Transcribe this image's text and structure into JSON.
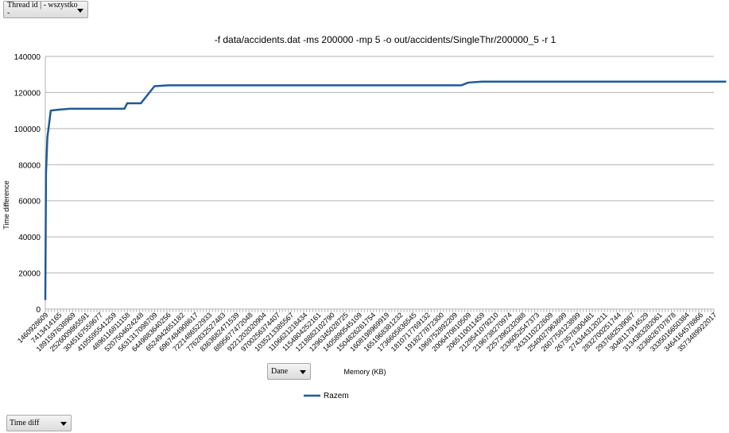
{
  "filters": {
    "thread": {
      "label": "Thread id | - wszystko\n-"
    },
    "data_field": {
      "label": "Dane"
    },
    "series_field": {
      "label": "Time diff"
    }
  },
  "chart_data": {
    "type": "line",
    "title": "-f data/accidents.dat -ms 200000 -mp 5 -o out/accidents/SingleThr/200000_5 -r 1",
    "xlabel": "Memory (KB)",
    "ylabel": "Time difference",
    "ylim": [
      0,
      140000
    ],
    "yticks": [
      0,
      20000,
      40000,
      60000,
      80000,
      100000,
      120000,
      140000
    ],
    "grid": true,
    "legend": "bottom-center",
    "series_color": "#1f5a96",
    "x_tick_labels": [
      "1460928609",
      "7413414165",
      "1891597638969",
      "2526009865591",
      "3045167559677",
      "4105595541259",
      "4896116811158",
      "5207504624248",
      "5631317098709",
      "6449883640256",
      "6524942651182",
      "6967484908617",
      "7221486522933",
      "7762832527483",
      "8363682471539",
      "8895677472048",
      "9221202020904",
      "9700256374407",
      "1035213385567",
      "1106621218434",
      "1154804252161",
      "1218882102790",
      "1296345028725",
      "1405890545109",
      "1504826261754",
      "1608198969919",
      "1651968381232",
      "1736605836545",
      "1810717769132",
      "1918277872300",
      "1969752892209",
      "2006470810509",
      "2065110011459",
      "2128541079210",
      "2196738270974",
      "2257396232088",
      "2336052547373",
      "2433110222609",
      "2540027963699",
      "2607758123899",
      "2673578300481",
      "2743443120211",
      "2832700251744",
      "2937682539087",
      "3048117914529",
      "3134383282061",
      "3236826707878",
      "3335016650384",
      "3464164578866",
      "3573489922017"
    ],
    "series": [
      {
        "name": "Razem",
        "x": [
          0,
          0.05,
          0.15,
          0.4,
          1.0,
          1.8,
          2.5,
          3.2,
          4.0,
          4.5,
          5.0,
          5.8,
          6.0,
          6.2,
          7.0,
          8.0,
          9.0,
          10.8,
          11.2,
          11.8,
          12.2,
          13.0,
          30.5,
          31.0,
          32.0,
          49.9
        ],
        "y": [
          5000,
          75000,
          95000,
          110000,
          110500,
          111000,
          111000,
          111000,
          111000,
          111000,
          111000,
          111000,
          114000,
          114000,
          114000,
          123500,
          124000,
          124000,
          124000,
          124000,
          124000,
          124000,
          124000,
          125500,
          126000,
          126000
        ]
      }
    ]
  }
}
